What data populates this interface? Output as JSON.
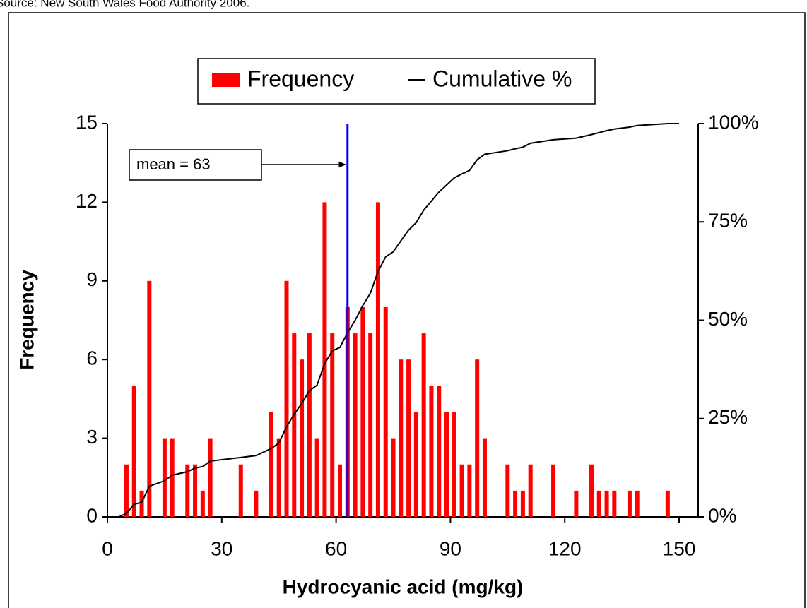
{
  "chart_data": {
    "type": "histogram",
    "source": "Source: New South Wales Food Authority 2006.",
    "xlabel": "Hydrocyanic acid (mg/kg)",
    "ylabel": "Frequency",
    "xlim": [
      0,
      155
    ],
    "xticks": [
      0,
      30,
      60,
      90,
      120,
      150
    ],
    "ylim": [
      0,
      15
    ],
    "yticks": [
      0,
      3,
      6,
      9,
      12,
      15
    ],
    "y2lim": [
      0,
      100
    ],
    "y2ticks": [
      {
        "value": 0,
        "label": "0%"
      },
      {
        "value": 25,
        "label": "25%"
      },
      {
        "value": 50,
        "label": "50%"
      },
      {
        "value": 75,
        "label": "75%"
      },
      {
        "value": 100,
        "label": "100%"
      }
    ],
    "legend": "top",
    "series": [
      {
        "name": "Frequency",
        "color": "#ff0000",
        "x": [
          5,
          7,
          9,
          11,
          15,
          17,
          21,
          23,
          25,
          27,
          35,
          39,
          43,
          45,
          47,
          49,
          51,
          53,
          55,
          57,
          59,
          61,
          63,
          65,
          67,
          69,
          71,
          73,
          75,
          77,
          79,
          81,
          83,
          85,
          87,
          89,
          91,
          93,
          95,
          97,
          99,
          105,
          107,
          109,
          111,
          117,
          123,
          127,
          129,
          131,
          133,
          137,
          139,
          147
        ],
        "values": [
          2,
          5,
          1,
          9,
          3,
          3,
          2,
          2,
          1,
          3,
          2,
          1,
          4,
          3,
          9,
          7,
          6,
          7,
          3,
          12,
          7,
          2,
          8,
          7,
          8,
          7,
          12,
          8,
          3,
          6,
          6,
          4,
          7,
          5,
          5,
          4,
          4,
          2,
          2,
          6,
          3,
          2,
          1,
          1,
          2,
          2,
          1,
          2,
          1,
          1,
          1,
          1,
          1,
          1
        ]
      },
      {
        "name": "Cumulative %",
        "color": "#000000",
        "axis": "y2",
        "x": [
          3,
          5,
          7,
          9,
          11,
          15,
          17,
          21,
          23,
          25,
          27,
          35,
          39,
          43,
          45,
          47,
          49,
          51,
          53,
          55,
          57,
          59,
          61,
          63,
          65,
          67,
          69,
          71,
          73,
          75,
          77,
          79,
          81,
          83,
          85,
          87,
          89,
          91,
          93,
          95,
          97,
          99,
          105,
          107,
          109,
          111,
          117,
          123,
          127,
          129,
          131,
          133,
          137,
          139,
          147,
          150
        ],
        "values": [
          0,
          0.9,
          3.2,
          3.7,
          7.8,
          9.2,
          10.6,
          11.5,
          12.4,
          12.8,
          14.2,
          15.1,
          15.6,
          17.4,
          18.8,
          22.9,
          26.1,
          28.9,
          32.1,
          33.5,
          39.0,
          42.2,
          43.1,
          46.8,
          50.0,
          53.7,
          56.9,
          62.4,
          66.1,
          67.4,
          70.2,
          72.9,
          74.8,
          78.0,
          80.3,
          82.6,
          84.4,
          86.2,
          87.2,
          88.1,
          90.8,
          92.2,
          93.1,
          93.6,
          94.0,
          95.0,
          95.9,
          96.3,
          97.2,
          97.7,
          98.2,
          98.6,
          99.1,
          99.5,
          100,
          100
        ]
      }
    ],
    "mean_line": {
      "x": 63,
      "label": "mean = 63",
      "color": "#0000ff"
    }
  }
}
